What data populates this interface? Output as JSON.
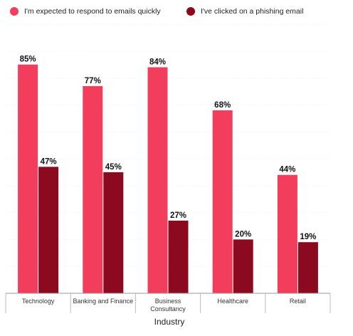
{
  "chart_data": {
    "type": "bar",
    "categories": [
      "Technology",
      "Banking and Finance",
      "Business\nConsultancy",
      "Healthcare",
      "Retail"
    ],
    "series": [
      {
        "name": "I'm expected to respond to emails quickly",
        "color": "#f23d5c",
        "values": [
          85,
          77,
          84,
          68,
          44
        ],
        "labels": [
          "85%",
          "77%",
          "84%",
          "68%",
          "44%"
        ]
      },
      {
        "name": "I've clicked on a phishing email",
        "color": "#8b0a1f",
        "values": [
          47,
          45,
          27,
          20,
          19
        ],
        "labels": [
          "47%",
          "45%",
          "27%",
          "20%",
          "19%"
        ]
      }
    ],
    "xlabel": "Industry",
    "ylabel": "",
    "ylim": [
      0,
      100
    ],
    "grid": true,
    "legend_position": "top-center"
  }
}
